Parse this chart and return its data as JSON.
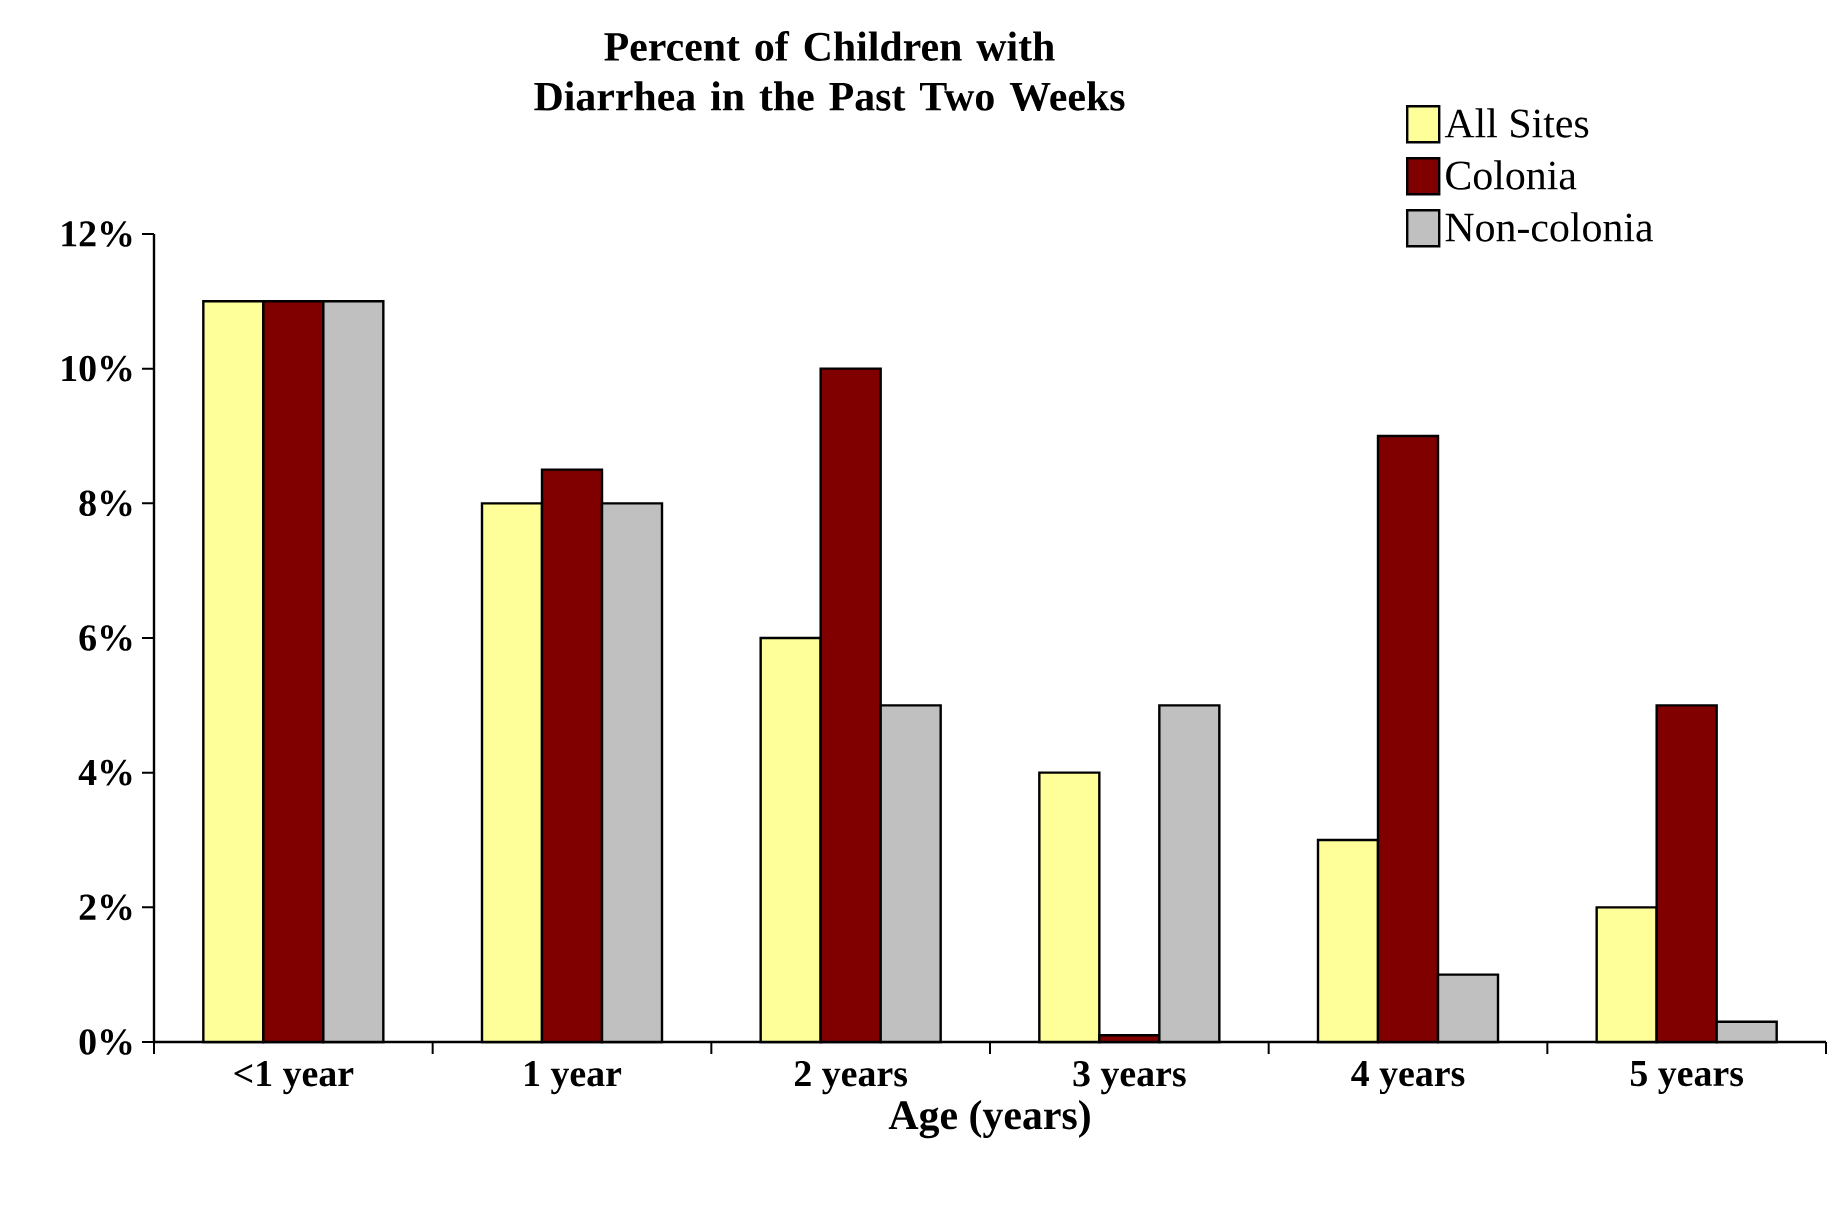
{
  "chart_data": {
    "type": "bar",
    "title": "Percent of Children with Diarrhea in the Past Two Weeks",
    "xlabel": "Age (years)",
    "categories": [
      "<1 year",
      "1 year",
      "2 years",
      "3 years",
      "4 years",
      "5 years"
    ],
    "series": [
      {
        "name": "All Sites",
        "color": "#ffff99",
        "values": [
          11,
          8,
          6,
          4,
          3,
          2
        ]
      },
      {
        "name": "Colonia",
        "color": "#800000",
        "values": [
          11,
          8.5,
          10,
          0.1,
          9,
          5
        ]
      },
      {
        "name": "Non-colonia",
        "color": "#c0c0c0",
        "values": [
          11,
          8,
          5,
          5,
          1,
          0.3
        ]
      }
    ],
    "ylim": [
      0,
      12
    ],
    "yticks": [
      {
        "value": 0,
        "label": "0%"
      },
      {
        "value": 2,
        "label": "2%"
      },
      {
        "value": 4,
        "label": "4%"
      },
      {
        "value": 6,
        "label": "6%"
      },
      {
        "value": 8,
        "label": "8%"
      },
      {
        "value": 10,
        "label": "10%"
      },
      {
        "value": 12,
        "label": "12%"
      }
    ],
    "legend": "top right"
  }
}
